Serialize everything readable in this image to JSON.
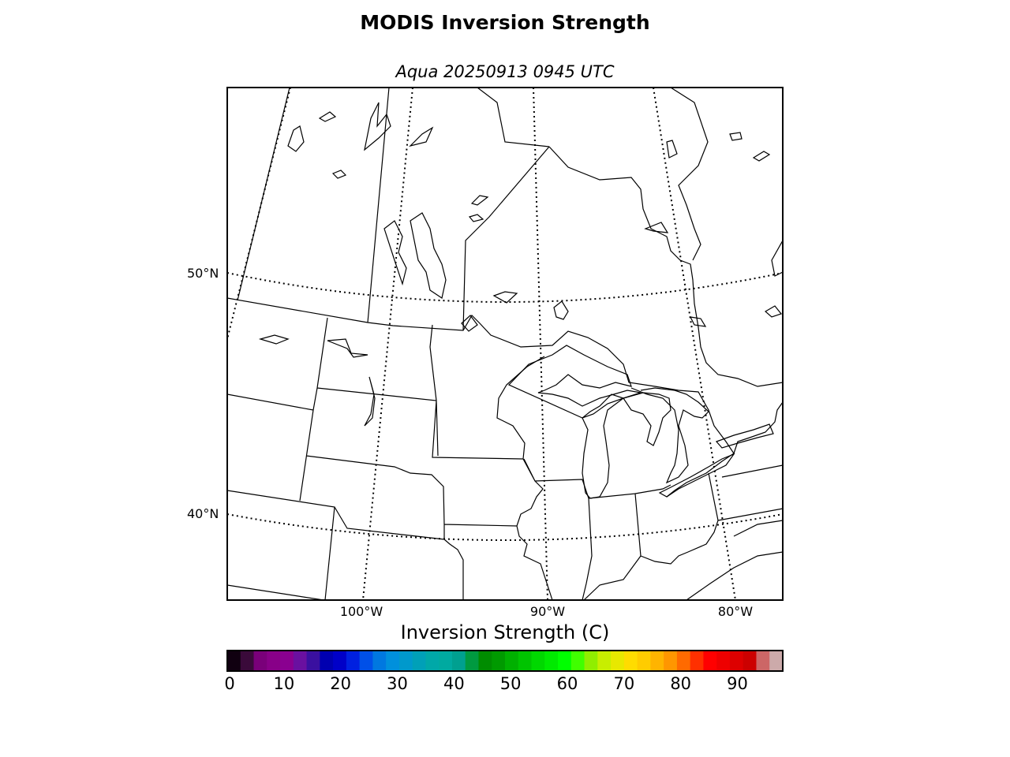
{
  "title": "MODIS Inversion Strength",
  "subtitle": "Aqua 20250913 0945 UTC",
  "map": {
    "lat_labels": [
      "50°N",
      "40°N"
    ],
    "lon_labels": [
      "100°W",
      "90°W",
      "80°W"
    ],
    "fill": "#ffffff",
    "line_color": "#000000"
  },
  "colorbar": {
    "title": "Inversion Strength (C)",
    "ticks": [
      "0",
      "10",
      "20",
      "30",
      "40",
      "50",
      "60",
      "70",
      "80",
      "90"
    ],
    "range": [
      0,
      98
    ],
    "colors": [
      "#100010",
      "#3a0a3a",
      "#7a007a",
      "#880088",
      "#8a0090",
      "#6a10a0",
      "#3a10a0",
      "#0000b0",
      "#0000c8",
      "#0020e0",
      "#0050e8",
      "#0078e0",
      "#0090dc",
      "#0099cc",
      "#00a0b8",
      "#00a8a8",
      "#00aaa0",
      "#00a090",
      "#009a40",
      "#008c00",
      "#009a00",
      "#00b000",
      "#00c400",
      "#00d800",
      "#00ea00",
      "#00ff00",
      "#40ff00",
      "#90ee00",
      "#c8ee00",
      "#e8e800",
      "#ffdc00",
      "#ffcc00",
      "#ffb400",
      "#ff9600",
      "#ff6a00",
      "#ff3000",
      "#ff0000",
      "#ee0000",
      "#dd0000",
      "#cc0000",
      "#cc6666",
      "#ccaaaa"
    ]
  }
}
